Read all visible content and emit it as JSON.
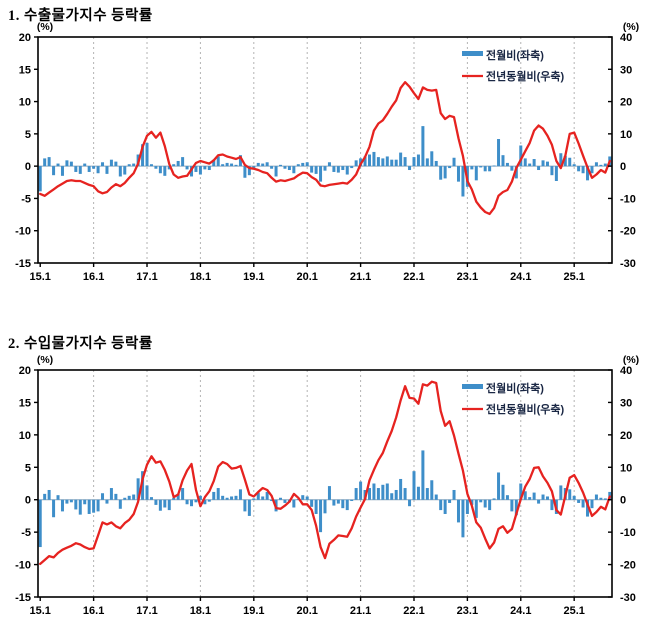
{
  "page": {
    "background": "#ffffff"
  },
  "style": {
    "bar_color": "#3e8ec9",
    "line_color": "#e62320",
    "grid_color": "#b3b3b3",
    "zero_line_color": "#8fa8bc",
    "axis_color": "#000000",
    "legend_text_color": "#1a2744"
  },
  "chart_data": [
    {
      "type": "bar+line",
      "title": "1. 수출물가지수 등락률",
      "x_tick_labels": [
        "15.1",
        "16.1",
        "17.1",
        "18.1",
        "19.1",
        "20.1",
        "21.1",
        "22.1",
        "23.1",
        "24.1",
        "25.1"
      ],
      "x_range": "2015.01-2025.09",
      "left_axis": {
        "unit": "(%)",
        "min": -15,
        "max": 20,
        "ticks": [
          20,
          15,
          10,
          5,
          0,
          -5,
          -10,
          -15
        ]
      },
      "right_axis": {
        "unit": "(%)",
        "min": -30,
        "max": 40,
        "ticks": [
          40,
          30,
          20,
          10,
          0,
          -10,
          -20,
          -30
        ]
      },
      "legend_position": "top-right-inside",
      "grid": "vertical-dashed-yearly",
      "series": [
        {
          "name": "전월비(좌축)",
          "type": "bar",
          "axis": "left",
          "values": [
            -3.9,
            1.2,
            1.4,
            -1.4,
            0.4,
            -1.5,
            0.9,
            0.7,
            -0.9,
            -1.2,
            0.4,
            -0.9,
            -0.4,
            -1.1,
            0.6,
            -1.2,
            1.0,
            0.7,
            -1.6,
            -1.3,
            0.3,
            0.4,
            1.8,
            3.4,
            3.6,
            0.3,
            -0.4,
            -1.1,
            -1.5,
            -0.5,
            0.3,
            0.8,
            1.4,
            -0.5,
            -1.6,
            -0.9,
            -1.3,
            -0.5,
            -0.6,
            1.0,
            1.5,
            0.3,
            0.5,
            0.4,
            0.2,
            1.7,
            -1.8,
            -1.4,
            -0.5,
            0.5,
            0.4,
            0.6,
            -0.4,
            -1.6,
            0.2,
            -0.4,
            -0.6,
            -1.1,
            0.3,
            0.5,
            0.6,
            -1.0,
            -1.2,
            -2.4,
            -0.7,
            0.6,
            -0.9,
            -1.0,
            -0.6,
            -1.3,
            -0.3,
            0.9,
            1.2,
            1.5,
            1.8,
            2.2,
            1.4,
            1.2,
            1.5,
            1.0,
            1.0,
            2.1,
            1.4,
            -0.6,
            1.4,
            1.8,
            6.2,
            1.2,
            2.3,
            0.8,
            -2.1,
            -1.9,
            -0.3,
            1.3,
            -2.4,
            -4.7,
            -3.2,
            -0.5,
            -2.2,
            -0.2,
            -0.8,
            -0.8,
            0.1,
            4.2,
            1.7,
            0.5,
            -0.7,
            -1.9,
            3.2,
            1.2,
            0.4,
            1.1,
            -0.6,
            0.9,
            0.7,
            -1.4,
            -2.3,
            2.0,
            1.6,
            1.3,
            0.3,
            -0.8,
            -1.1,
            -2.2,
            -1.1,
            0.6,
            0.2,
            0.4,
            1.5
          ]
        },
        {
          "name": "전년동월비(우측)",
          "type": "line",
          "axis": "right",
          "values": [
            -8.6,
            -9.2,
            -8.2,
            -7.2,
            -6.2,
            -5.4,
            -4.6,
            -4.4,
            -4.6,
            -4.6,
            -5.2,
            -5.8,
            -6.2,
            -7.8,
            -8.4,
            -8.0,
            -6.6,
            -5.6,
            -6.2,
            -5.2,
            -3.6,
            -2.2,
            0.8,
            6.0,
            9.4,
            10.6,
            8.8,
            10.4,
            6.2,
            0.6,
            -2.6,
            -3.6,
            -3.2,
            -3.0,
            -1.0,
            1.0,
            1.6,
            1.2,
            0.8,
            1.8,
            3.4,
            3.6,
            3.0,
            2.6,
            2.2,
            2.8,
            0.4,
            -0.6,
            -0.8,
            -1.2,
            -1.8,
            -2.2,
            -3.6,
            -4.8,
            -4.4,
            -4.6,
            -4.2,
            -3.8,
            -2.8,
            -2.0,
            -2.2,
            -3.4,
            -4.2,
            -6.0,
            -6.2,
            -5.8,
            -5.6,
            -5.4,
            -5.2,
            -5.4,
            -4.2,
            -2.6,
            0.6,
            2.8,
            6.0,
            11.0,
            13.2,
            14.2,
            16.2,
            18.4,
            20.4,
            24.2,
            26.0,
            24.6,
            22.6,
            20.8,
            24.4,
            23.6,
            23.4,
            23.6,
            16.4,
            14.6,
            15.6,
            15.2,
            8.6,
            3.2,
            -4.6,
            -7.2,
            -11.0,
            -12.8,
            -14.2,
            -14.8,
            -13.0,
            -9.2,
            -8.0,
            -7.4,
            -4.8,
            -0.6,
            2.0,
            4.6,
            7.2,
            11.0,
            12.6,
            11.6,
            9.4,
            6.6,
            1.6,
            -0.6,
            3.2,
            10.0,
            10.4,
            7.0,
            3.2,
            -0.4,
            -3.6,
            -2.6,
            -1.2,
            -2.0,
            1.6
          ]
        }
      ],
      "legend": [
        "전월비(좌축)",
        "전년동월비(우축)"
      ]
    },
    {
      "type": "bar+line",
      "title": "2. 수입물가지수 등락률",
      "x_tick_labels": [
        "15.1",
        "16.1",
        "17.1",
        "18.1",
        "19.1",
        "20.1",
        "21.1",
        "22.1",
        "23.1",
        "24.1",
        "25.1"
      ],
      "x_range": "2015.01-2025.09",
      "left_axis": {
        "unit": "(%)",
        "min": -15,
        "max": 20,
        "ticks": [
          20,
          15,
          10,
          5,
          0,
          -5,
          -10,
          -15
        ]
      },
      "right_axis": {
        "unit": "(%)",
        "min": -30,
        "max": 40,
        "ticks": [
          40,
          30,
          20,
          10,
          0,
          -10,
          -20,
          -30
        ]
      },
      "legend_position": "top-right-inside",
      "grid": "vertical-dashed-yearly",
      "series": [
        {
          "name": "전월비(좌축)",
          "type": "bar",
          "axis": "left",
          "values": [
            -7.3,
            0.9,
            1.5,
            -2.7,
            0.7,
            -1.8,
            -0.6,
            -0.4,
            -1.5,
            -2.3,
            -0.7,
            -2.2,
            -2.0,
            -1.8,
            1.0,
            -0.6,
            1.8,
            0.9,
            -1.4,
            0.3,
            0.6,
            0.8,
            3.3,
            4.4,
            2.2,
            0.4,
            -0.8,
            -1.7,
            -1.2,
            -1.6,
            0.3,
            0.9,
            1.8,
            -0.7,
            -1.0,
            -0.4,
            0.6,
            -0.7,
            -0.3,
            1.2,
            1.8,
            0.6,
            0.3,
            0.5,
            0.6,
            1.6,
            -1.8,
            -2.5,
            0.2,
            1.1,
            0.5,
            1.2,
            -0.2,
            -1.8,
            0.3,
            -0.5,
            -0.4,
            -1.2,
            0.1,
            0.7,
            0.5,
            -1.1,
            -2.2,
            -5.0,
            -2.1,
            2.1,
            -0.9,
            -0.6,
            -1.3,
            -1.6,
            -0.2,
            1.8,
            2.8,
            1.5,
            1.8,
            2.5,
            1.8,
            2.3,
            2.5,
            1.0,
            1.5,
            3.2,
            1.8,
            -1.0,
            4.4,
            2.0,
            7.6,
            1.8,
            3.0,
            0.8,
            -1.6,
            -2.2,
            -0.5,
            1.5,
            -3.5,
            -5.8,
            -2.2,
            -0.8,
            -2.8,
            -0.4,
            -1.2,
            -1.6,
            0.2,
            4.2,
            2.3,
            0.7,
            -1.8,
            -2.4,
            2.5,
            1.3,
            0.4,
            1.1,
            -0.6,
            0.8,
            0.5,
            -1.6,
            -2.2,
            2.2,
            1.8,
            1.6,
            0.6,
            -0.5,
            -1.2,
            -2.6,
            -1.3,
            0.8,
            0.3,
            0.2,
            1.2
          ]
        },
        {
          "name": "전년동월비(우측)",
          "type": "line",
          "axis": "right",
          "values": [
            -19.8,
            -18.6,
            -17.4,
            -17.8,
            -16.4,
            -15.4,
            -14.8,
            -14.2,
            -13.4,
            -13.8,
            -14.6,
            -15.2,
            -15.0,
            -11.0,
            -7.0,
            -7.6,
            -7.0,
            -8.2,
            -8.8,
            -7.2,
            -6.2,
            -4.4,
            -0.6,
            6.4,
            10.8,
            13.4,
            11.4,
            11.8,
            9.2,
            5.6,
            0.8,
            1.6,
            6.0,
            9.0,
            11.0,
            3.0,
            -2.0,
            0.8,
            2.6,
            5.8,
            10.2,
            11.6,
            11.0,
            9.6,
            9.8,
            10.4,
            6.2,
            1.6,
            1.0,
            2.4,
            3.6,
            3.0,
            1.2,
            -2.6,
            -2.8,
            -1.8,
            -0.6,
            1.8,
            0.6,
            -1.4,
            -1.4,
            -3.2,
            -8.0,
            -14.6,
            -18.0,
            -13.6,
            -12.4,
            -11.0,
            -11.2,
            -11.4,
            -8.8,
            -5.2,
            -2.4,
            0.2,
            6.0,
            9.2,
            12.2,
            14.4,
            18.0,
            21.2,
            25.4,
            30.6,
            35.0,
            31.4,
            31.2,
            29.6,
            35.6,
            35.2,
            36.4,
            36.0,
            27.4,
            22.8,
            24.2,
            19.8,
            14.2,
            9.0,
            1.8,
            -1.8,
            -7.0,
            -8.6,
            -12.0,
            -15.0,
            -13.2,
            -9.0,
            -8.2,
            -10.2,
            -9.0,
            -4.4,
            0.2,
            4.0,
            6.4,
            9.8,
            10.0,
            7.2,
            5.2,
            2.6,
            -3.2,
            -4.6,
            1.2,
            6.8,
            7.6,
            5.2,
            2.2,
            -1.4,
            -5.0,
            -3.8,
            -2.2,
            -3.0,
            1.0
          ]
        }
      ],
      "legend": [
        "전월비(좌축)",
        "전년동월비(우축)"
      ]
    }
  ]
}
